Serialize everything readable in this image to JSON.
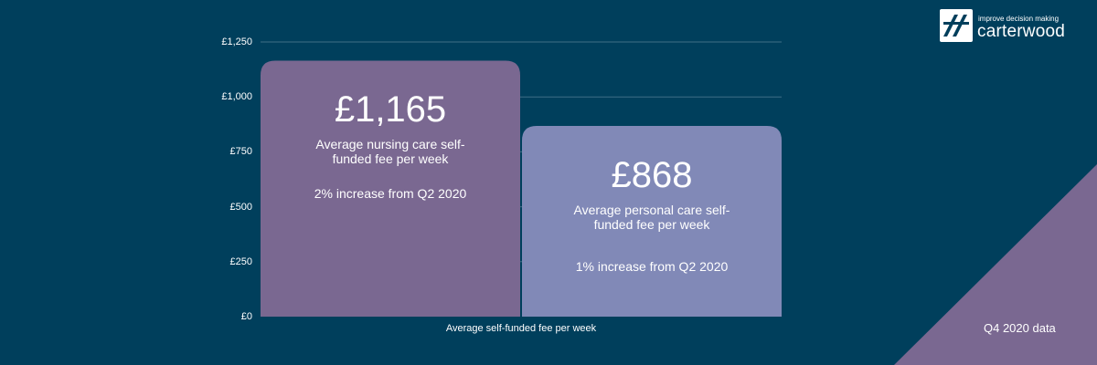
{
  "brand": {
    "tagline": "improve decision making",
    "name": "carterwood"
  },
  "footer_note": "Q4 2020 data",
  "colors": {
    "background": "#003f5c",
    "gridline": "#3f6f86",
    "nursing_bar": "#7a6891",
    "personal_bar": "#8189b7",
    "corner_triangle": "#7a6891",
    "text": "#ffffff"
  },
  "chart_data": {
    "type": "bar",
    "title": "",
    "xlabel": "Average self-funded fee per week",
    "ylabel": "",
    "ylim": [
      0,
      1250
    ],
    "yticks": [
      "£0",
      "£250",
      "£500",
      "£750",
      "£1,000",
      "£1,250"
    ],
    "ytick_values": [
      0,
      250,
      500,
      750,
      1000,
      1250
    ],
    "grid": true,
    "categories": [
      "Average nursing care self-funded fee per week",
      "Average personal care self-funded fee per week"
    ],
    "values": [
      1165,
      868
    ],
    "labels": [
      {
        "value": "£1,165",
        "desc_line1": "Average nursing care self-",
        "desc_line2": "funded fee per week",
        "change": "2% increase from Q2 2020"
      },
      {
        "value": "£868",
        "desc_line1": "Average personal care self-",
        "desc_line2": "funded fee per week",
        "change": "1% increase from Q2 2020"
      }
    ]
  }
}
